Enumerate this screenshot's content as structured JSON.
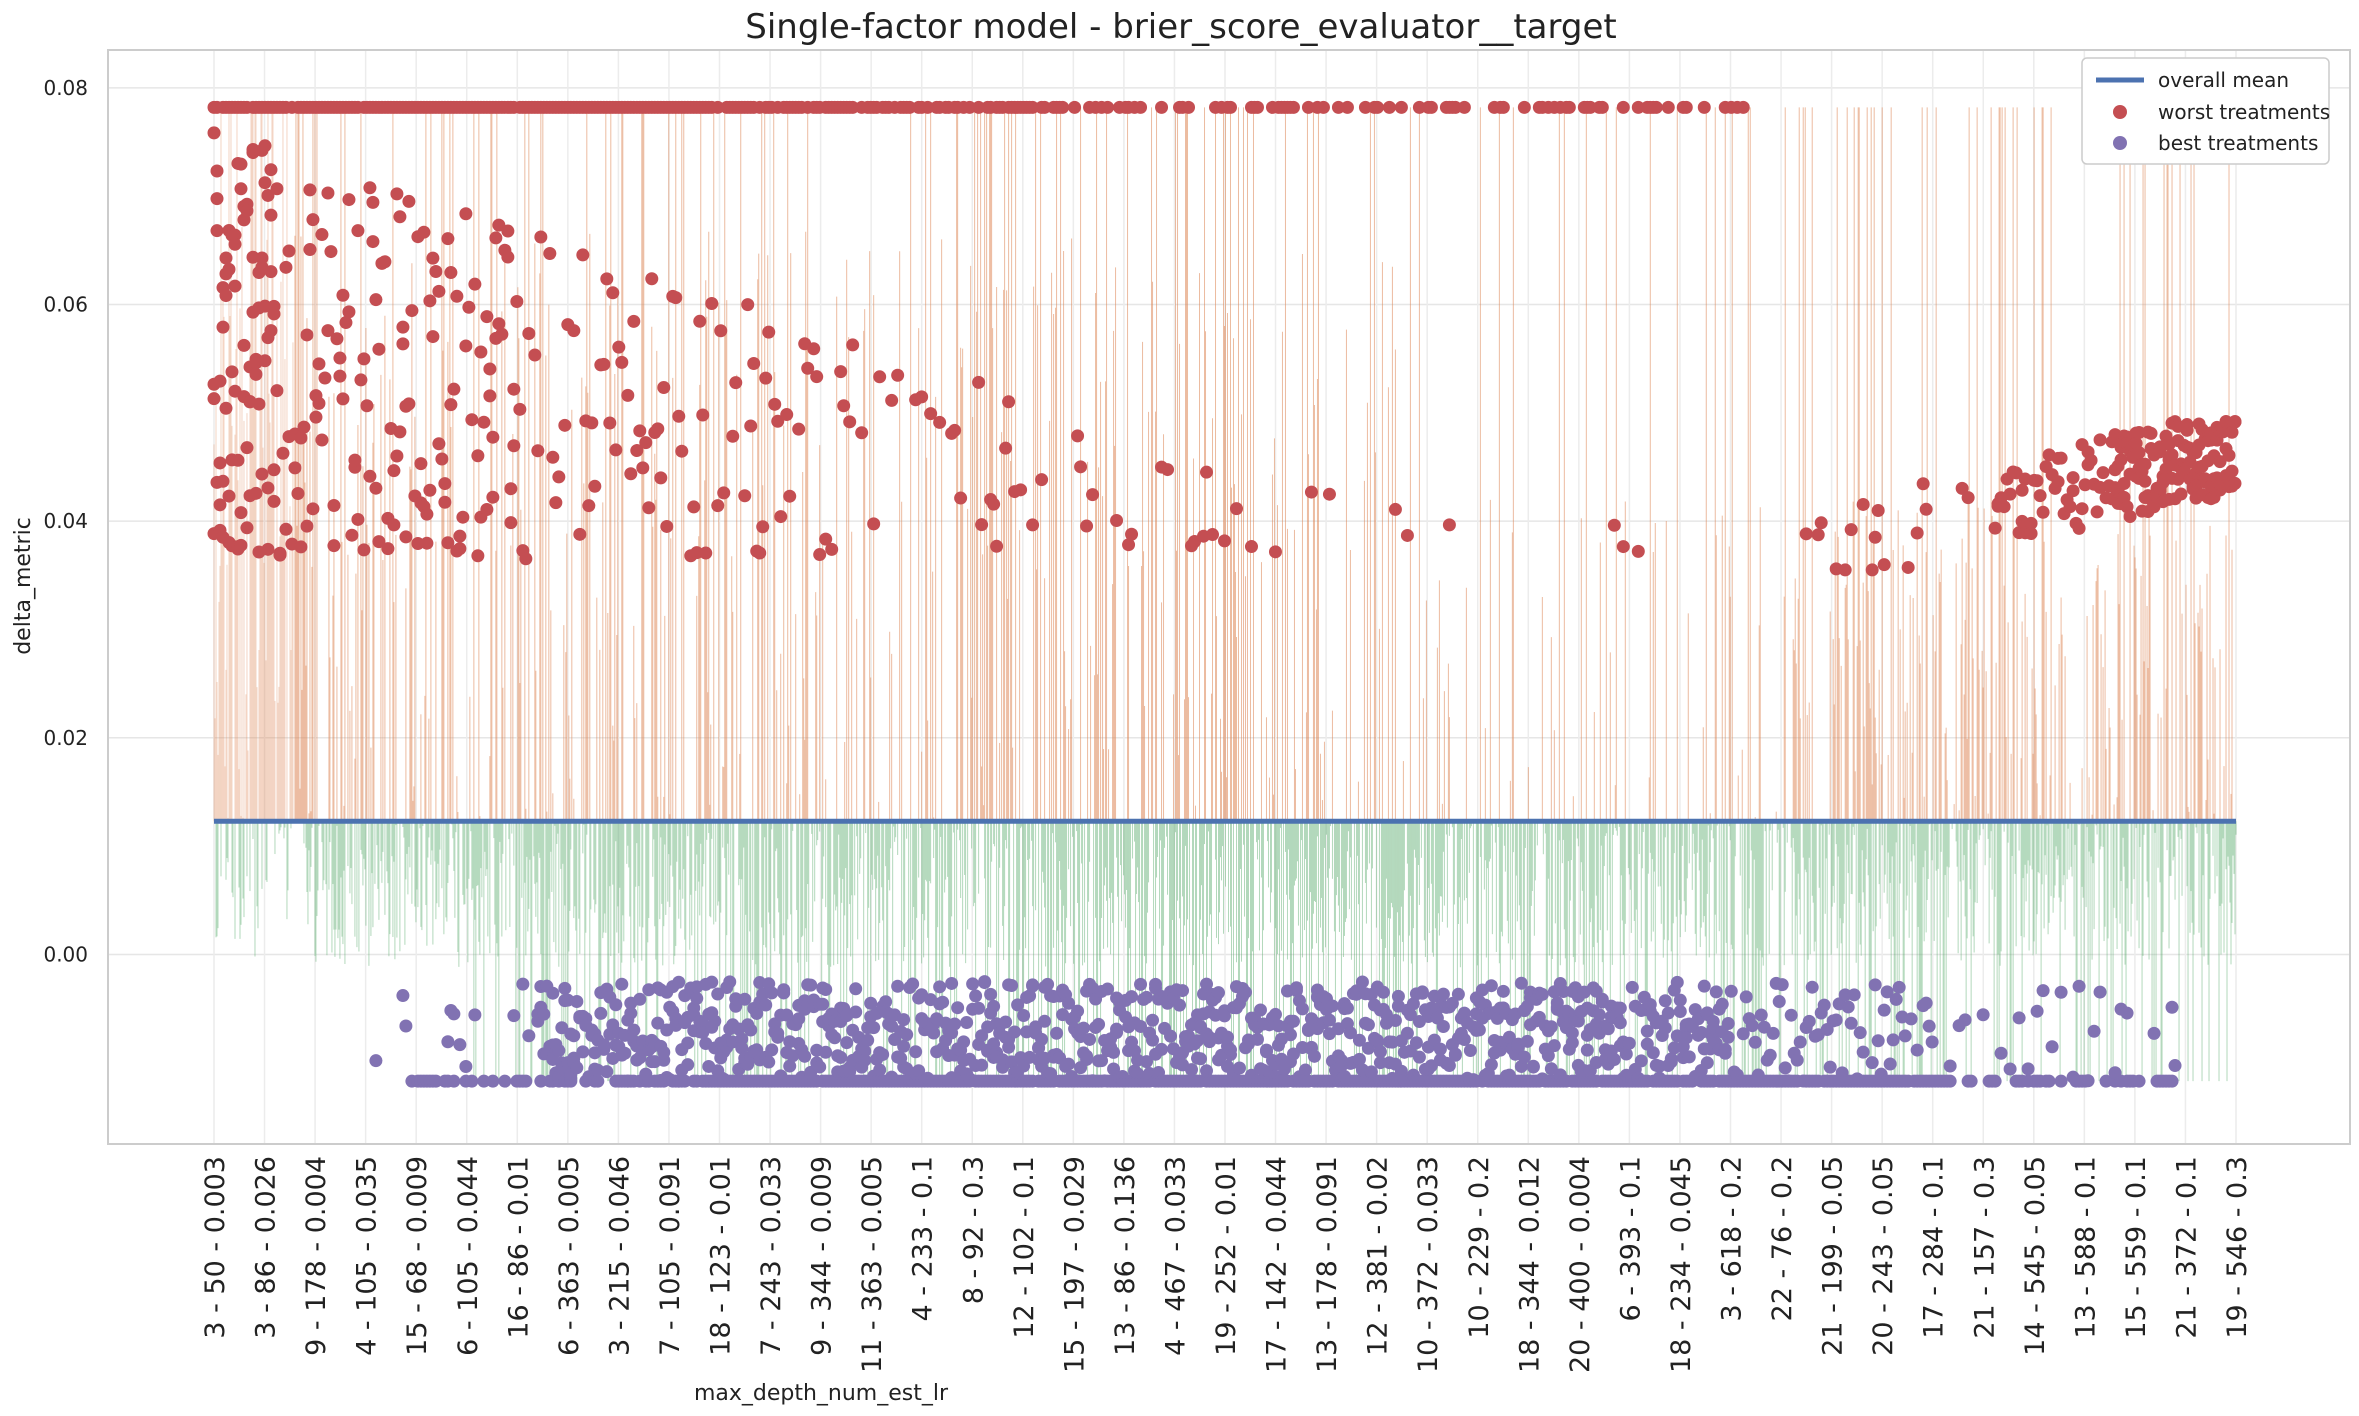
{
  "chart_data": {
    "type": "scatter",
    "title": "Single-factor model - brier_score_evaluator__target",
    "xlabel": "max_depth_num_est_lr",
    "ylabel": "delta_metric",
    "ylim": [
      -0.0175,
      0.0835
    ],
    "yticks": [
      "0.08",
      "0.06",
      "0.04",
      "0.02",
      "0.00"
    ],
    "ytick_values": [
      0.08,
      0.06,
      0.04,
      0.02,
      0.0
    ],
    "x_count": 4047,
    "categories": [
      "3 - 50 - 0.003",
      "3 - 86 - 0.026",
      "9 - 178 - 0.004",
      "4 - 105 - 0.035",
      "15 - 68 - 0.009",
      "6 - 105 - 0.044",
      "16 - 86 - 0.01",
      "6 - 363 - 0.005",
      "3 - 215 - 0.046",
      "7 - 105 - 0.091",
      "18 - 123 - 0.01",
      "7 - 243 - 0.033",
      "9 - 344 - 0.009",
      "11 - 363 - 0.005",
      "4 - 233 - 0.1",
      "8 - 92 - 0.3",
      "12 - 102 - 0.1",
      "15 - 197 - 0.029",
      "13 - 86 - 0.136",
      "4 - 467 - 0.033",
      "19 - 252 - 0.01",
      "17 - 142 - 0.044",
      "13 - 178 - 0.091",
      "12 - 381 - 0.02",
      "10 - 372 - 0.033",
      "10 - 229 - 0.2",
      "18 - 344 - 0.012",
      "20 - 400 - 0.004",
      "6 - 393 - 0.1",
      "18 - 234 - 0.045",
      "3 - 618 - 0.2",
      "22 - 76 - 0.2",
      "21 - 199 - 0.05",
      "20 - 243 - 0.05",
      "17 - 284 - 0.1",
      "21 - 157 - 0.3",
      "14 - 545 - 0.05",
      "13 - 588 - 0.1",
      "15 - 559 - 0.1",
      "21 - 372 - 0.1",
      "19 - 546 - 0.3"
    ],
    "overall_mean": 0.0123,
    "series": [
      {
        "name": "overall mean",
        "kind": "line",
        "color": "#4c72b0"
      },
      {
        "name": "worst treatments",
        "kind": "scatter",
        "color": "#c44e52",
        "max": 0.0782,
        "upper_band": [
          0.036,
          0.0782
        ],
        "right_cluster": [
          0.036,
          0.049
        ]
      },
      {
        "name": "best treatments",
        "kind": "scatter",
        "color": "#8172b2",
        "min": -0.0117,
        "band": [
          -0.0117,
          -0.0025
        ]
      }
    ],
    "stem_colors": {
      "above_mean": "#dd8452",
      "below_mean": "#55a868"
    },
    "legend": "top-right",
    "grid": true
  }
}
